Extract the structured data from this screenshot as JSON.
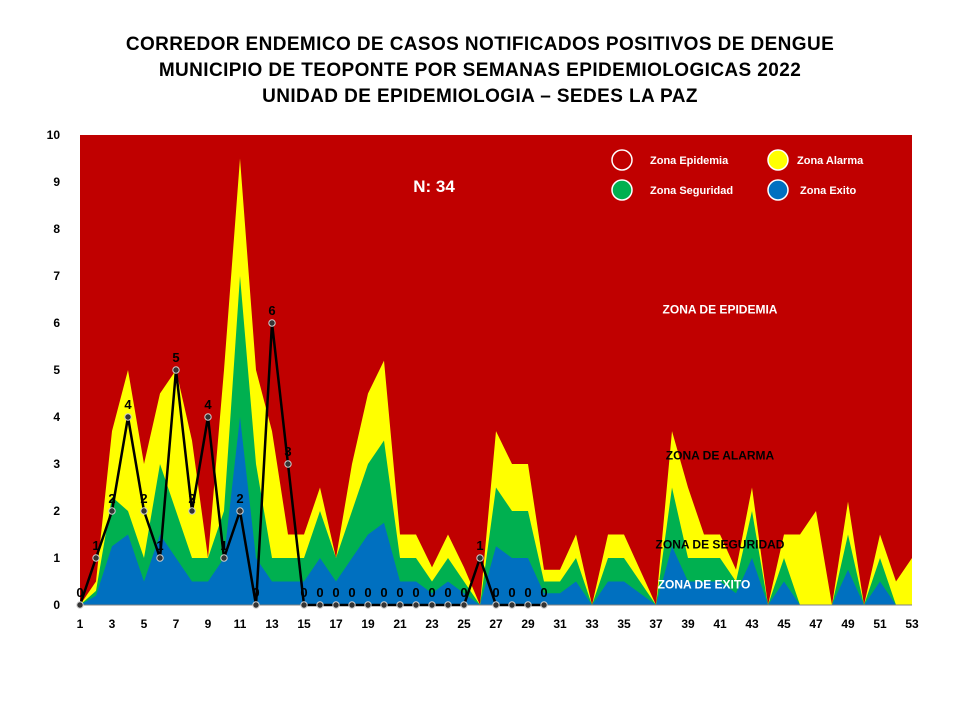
{
  "title_lines": [
    "CORREDOR ENDEMICO DE CASOS NOTIFICADOS POSITIVOS DE DENGUE",
    "MUNICIPIO DE TEOPONTE  POR SEMANAS EPIDEMIOLOGICAS 2022",
    "UNIDAD DE EPIDEMIOLOGIA – SEDES LA PAZ"
  ],
  "chart_data": {
    "type": "area",
    "title": "CORREDOR ENDEMICO DE CASOS NOTIFICADOS POSITIVOS DE DENGUE MUNICIPIO DE TEOPONTE  POR SEMANAS EPIDEMIOLOGICAS 2022 UNIDAD DE EPIDEMIOLOGIA – SEDES LA PAZ",
    "xlabel": "",
    "ylabel": "",
    "xlim": [
      1,
      53
    ],
    "ylim": [
      0,
      10
    ],
    "x_ticks": [
      1,
      3,
      5,
      7,
      9,
      11,
      13,
      15,
      17,
      19,
      21,
      23,
      25,
      27,
      29,
      31,
      33,
      35,
      37,
      39,
      41,
      43,
      45,
      47,
      49,
      51,
      53
    ],
    "y_ticks": [
      0,
      1,
      2,
      3,
      4,
      5,
      6,
      7,
      8,
      9,
      10
    ],
    "weeks": [
      1,
      2,
      3,
      4,
      5,
      6,
      7,
      8,
      9,
      10,
      11,
      12,
      13,
      14,
      15,
      16,
      17,
      18,
      19,
      20,
      21,
      22,
      23,
      24,
      25,
      26,
      27,
      28,
      29,
      30,
      31,
      32,
      33,
      34,
      35,
      36,
      37,
      38,
      39,
      40,
      41,
      42,
      43,
      44,
      45,
      46,
      47,
      48,
      49,
      50,
      51,
      52,
      53
    ],
    "series": [
      {
        "name": "Zona Epidemia",
        "color": "#c00000",
        "values": [
          10,
          10,
          10,
          10,
          10,
          10,
          10,
          10,
          10,
          10,
          10,
          10,
          10,
          10,
          10,
          10,
          10,
          10,
          10,
          10,
          10,
          10,
          10,
          10,
          10,
          10,
          10,
          10,
          10,
          10,
          10,
          10,
          10,
          10,
          10,
          10,
          10,
          10,
          10,
          10,
          10,
          10,
          10,
          10,
          10,
          10,
          10,
          10,
          10,
          10,
          10,
          10,
          10
        ]
      },
      {
        "name": "Zona Alarma",
        "color": "#ffff00",
        "values": [
          0,
          0.5,
          3.7,
          5,
          3,
          4.5,
          5,
          3.5,
          1,
          5,
          9.5,
          5,
          3.7,
          1.5,
          1.5,
          2.5,
          1,
          3,
          4.5,
          5.2,
          1.5,
          1.5,
          0.8,
          1.5,
          0.8,
          0,
          3.7,
          3,
          3,
          0.75,
          0.75,
          1.5,
          0,
          1.5,
          1.5,
          0.75,
          0,
          3.7,
          2.5,
          1.5,
          1.5,
          0.75,
          2.5,
          0,
          1.5,
          1.5,
          2,
          0,
          2.2,
          0,
          1.5,
          0.5,
          1
        ]
      },
      {
        "name": "Zona Seguridad",
        "color": "#00b050",
        "values": [
          0,
          0.3,
          2.3,
          2,
          1,
          3,
          2,
          1,
          1,
          2,
          7,
          3,
          1,
          1,
          1,
          2,
          1,
          2,
          3,
          3.5,
          1,
          1,
          0.5,
          1,
          0.5,
          0,
          2.5,
          2,
          2,
          0.5,
          0.5,
          1,
          0,
          1,
          1,
          0.5,
          0,
          2.5,
          1,
          1,
          1,
          0.5,
          2,
          0,
          1,
          0,
          0,
          0,
          1.5,
          0,
          1,
          0,
          0
        ]
      },
      {
        "name": "Zona Exito",
        "color": "#0070c0",
        "values": [
          0,
          0.2,
          1.25,
          1.5,
          0.5,
          1.5,
          1,
          0.5,
          0.5,
          1,
          4,
          1,
          0.5,
          0.5,
          0.5,
          1,
          0.5,
          1,
          1.5,
          1.75,
          0.5,
          0.5,
          0.25,
          0.5,
          0.25,
          0,
          1.25,
          1,
          1,
          0.25,
          0.25,
          0.5,
          0,
          0.5,
          0.5,
          0.25,
          0,
          1.25,
          0.5,
          0.5,
          0.5,
          0.25,
          1,
          0,
          0.5,
          0,
          0,
          0,
          0.75,
          0,
          0.5,
          0,
          0
        ]
      },
      {
        "name": "Casos 2022",
        "color": "#000000",
        "values": [
          0,
          1,
          2,
          4,
          2,
          1,
          5,
          2,
          4,
          1,
          2,
          0,
          6,
          3,
          0,
          0,
          0,
          0,
          0,
          0,
          0,
          0,
          0,
          0,
          0,
          1,
          0,
          0,
          0,
          0
        ]
      }
    ],
    "annotation": "N: 34",
    "zone_labels": [
      "ZONA DE EPIDEMIA",
      "ZONA DE ALARMA",
      "ZONA DE  SEGURIDAD",
      "ZONA DE  EXITO"
    ],
    "legend": [
      "Zona Epidemia",
      "Zona Alarma",
      "Zona Seguridad",
      "Zona Exito"
    ],
    "legend_position": "top-right"
  }
}
